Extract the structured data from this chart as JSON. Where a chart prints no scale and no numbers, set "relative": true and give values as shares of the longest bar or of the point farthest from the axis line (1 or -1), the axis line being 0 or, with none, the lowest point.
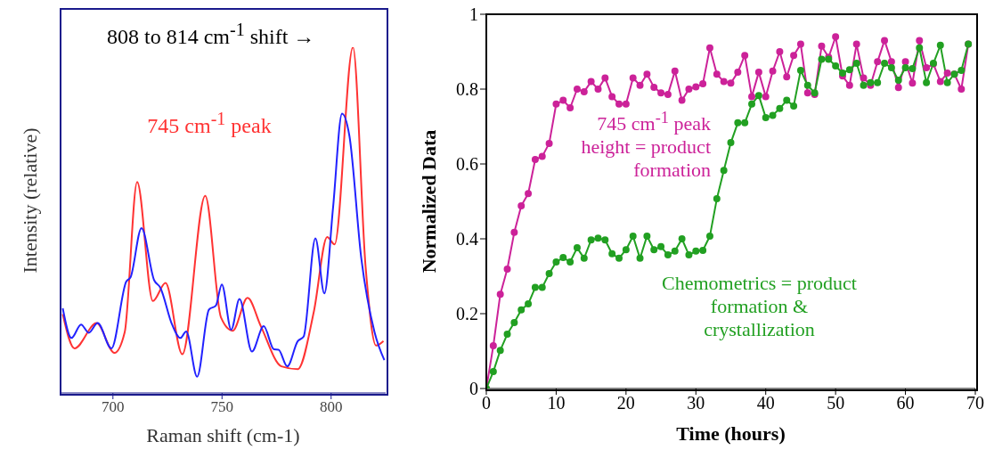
{
  "chart_data": [
    {
      "type": "line",
      "relative": true,
      "xlabel": "Raman shift (cm-1)",
      "ylabel": "Intensity (relative)",
      "xlim": [
        676,
        825
      ],
      "xticks": [
        700,
        750,
        800
      ],
      "marker": "none",
      "annotations": [
        "808 to 814 cm$^{-1}$ shift →",
        "745 cm$^{-1}$ peak"
      ],
      "series": [
        {
          "color": "#ff3333",
          "x": [
            677,
            682.4,
            692.5,
            700.7,
            705.4,
            711.1,
            718.3,
            724.1,
            731.8,
            742.3,
            749.5,
            754.9,
            761.7,
            767.8,
            777.2,
            784.7,
            792.1,
            798.2,
            801.6,
            810,
            815.8,
            820.6,
            824
          ],
          "values": [
            0.228,
            0.129,
            0.202,
            0.116,
            0.176,
            0.61,
            0.266,
            0.318,
            0.112,
            0.57,
            0.219,
            0.18,
            0.275,
            0.193,
            0.077,
            0.069,
            0.236,
            0.451,
            0.43,
            1.0,
            0.365,
            0.137,
            0.15
          ]
        },
        {
          "color": "#2222ff",
          "x": [
            677,
            681,
            685.4,
            688.9,
            693,
            699.3,
            706.1,
            708.1,
            713.1,
            718.9,
            721.7,
            727.1,
            730.9,
            733.6,
            738.6,
            744,
            747.2,
            749.9,
            754.2,
            758,
            763.7,
            769.1,
            773.8,
            775.9,
            779.9,
            784.7,
            787.4,
            792.8,
            796.9,
            800.9,
            805,
            808.4,
            813.8,
            819.9,
            824.4
          ],
          "values": [
            0.245,
            0.159,
            0.198,
            0.174,
            0.202,
            0.129,
            0.322,
            0.335,
            0.477,
            0.326,
            0.305,
            0.198,
            0.159,
            0.178,
            0.047,
            0.241,
            0.253,
            0.314,
            0.183,
            0.272,
            0.12,
            0.193,
            0.126,
            0.125,
            0.077,
            0.15,
            0.163,
            0.447,
            0.288,
            0.537,
            0.808,
            0.743,
            0.391,
            0.176,
            0.095
          ]
        }
      ]
    },
    {
      "type": "line",
      "xlabel": "Time (hours)",
      "ylabel": "Normalized Data",
      "xlim": [
        0,
        70
      ],
      "xticks": [
        0,
        10,
        20,
        30,
        40,
        50,
        60,
        70
      ],
      "ylim": [
        0,
        1
      ],
      "yticks": [
        0,
        0.2,
        0.4,
        0.6,
        0.8,
        1
      ],
      "marker": "circle",
      "x": [
        0,
        1,
        2,
        3,
        4,
        5,
        6,
        7,
        8,
        9,
        10,
        11,
        12,
        13,
        14,
        15,
        16,
        17,
        18,
        19,
        20,
        21,
        22,
        23,
        24,
        25,
        26,
        27,
        28,
        29,
        30,
        31,
        32,
        33,
        34,
        35,
        36,
        37,
        38,
        39,
        40,
        41,
        42,
        43,
        44,
        45,
        46,
        47,
        48,
        49,
        50,
        51,
        52,
        53,
        54,
        55,
        56,
        57,
        58,
        59,
        60,
        61,
        62,
        63,
        64,
        65,
        66,
        67,
        68,
        69
      ],
      "series": [
        {
          "name": "745 cm$^{-1}$ peak height = product formation",
          "color": "#cc2299",
          "values": [
            0,
            0.114,
            0.252,
            0.319,
            0.417,
            0.488,
            0.521,
            0.612,
            0.62,
            0.655,
            0.76,
            0.77,
            0.75,
            0.8,
            0.793,
            0.82,
            0.8,
            0.83,
            0.78,
            0.76,
            0.76,
            0.83,
            0.81,
            0.84,
            0.805,
            0.79,
            0.786,
            0.848,
            0.77,
            0.8,
            0.806,
            0.814,
            0.91,
            0.84,
            0.82,
            0.816,
            0.845,
            0.89,
            0.78,
            0.845,
            0.78,
            0.848,
            0.9,
            0.833,
            0.89,
            0.92,
            0.79,
            0.786,
            0.915,
            0.885,
            0.94,
            0.835,
            0.81,
            0.92,
            0.83,
            0.81,
            0.873,
            0.93,
            0.873,
            0.804,
            0.873,
            0.816,
            0.93,
            0.857,
            0.867,
            0.82,
            0.843,
            0.84,
            0.8,
            0.92
          ]
        },
        {
          "name": "Chemometrics = product formation & crystallization",
          "color": "#22a022",
          "values": [
            0,
            0.045,
            0.102,
            0.145,
            0.176,
            0.21,
            0.226,
            0.27,
            0.27,
            0.307,
            0.338,
            0.35,
            0.338,
            0.376,
            0.348,
            0.397,
            0.402,
            0.397,
            0.36,
            0.348,
            0.371,
            0.407,
            0.348,
            0.407,
            0.371,
            0.379,
            0.357,
            0.367,
            0.4,
            0.357,
            0.367,
            0.369,
            0.407,
            0.507,
            0.583,
            0.657,
            0.71,
            0.71,
            0.76,
            0.783,
            0.724,
            0.73,
            0.748,
            0.77,
            0.755,
            0.85,
            0.81,
            0.79,
            0.88,
            0.88,
            0.862,
            0.843,
            0.852,
            0.869,
            0.81,
            0.817,
            0.817,
            0.869,
            0.857,
            0.824,
            0.857,
            0.855,
            0.91,
            0.817,
            0.869,
            0.917,
            0.817,
            0.84,
            0.85,
            0.92
          ]
        }
      ]
    }
  ]
}
